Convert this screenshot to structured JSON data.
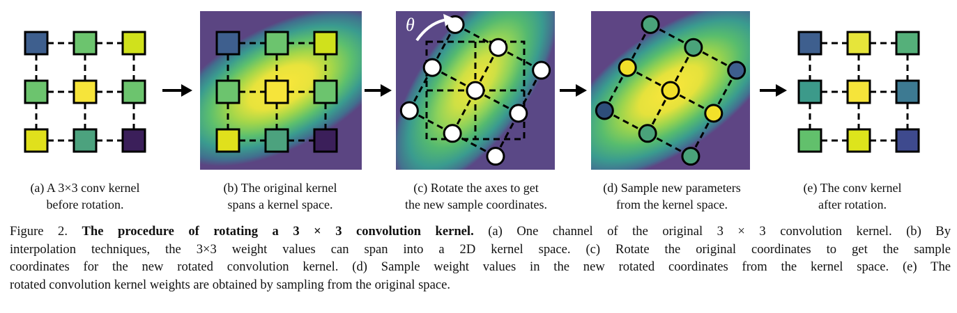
{
  "panels": [
    {
      "id": "a",
      "theta_label": "",
      "cells": [
        "#3e5f8e",
        "#6cc46e",
        "#d0e11c",
        "#6cc46e",
        "#f6e43a",
        "#6cc46e",
        "#e0e01c",
        "#4ca27e",
        "#3b1f5a"
      ],
      "caption": [
        "(a) A 3×3 conv kernel",
        "before rotation."
      ]
    },
    {
      "id": "b",
      "cells": [
        "#3e5f8e",
        "#6cc46e",
        "#d0e11c",
        "#6cc46e",
        "#f6e43a",
        "#6cc46e",
        "#e0e01c",
        "#4ca27e",
        "#3b1f5a"
      ],
      "caption": [
        "(b) The original kernel",
        "spans a kernel space."
      ]
    },
    {
      "id": "c",
      "theta_label": "θ",
      "caption": [
        "(c) Rotate the axes to get",
        "the new sample coordinates."
      ]
    },
    {
      "id": "d",
      "points": [
        "#2e4e7a",
        "#f2e12a",
        "#4aa37a",
        "#4aa37a",
        "#f2e12a",
        "#4aa37a",
        "#4aa37a",
        "#f2e12a",
        "#3e5f8e"
      ],
      "caption": [
        "(d) Sample new parameters",
        "from the kernel space."
      ]
    },
    {
      "id": "e",
      "cells": [
        "#3e5f8e",
        "#e6e53a",
        "#55b07a",
        "#3c9a8a",
        "#f6e43a",
        "#3d7a92",
        "#62c06c",
        "#dde41c",
        "#3e4a8e"
      ],
      "caption": [
        "(e) The conv kernel",
        "after rotation."
      ]
    }
  ],
  "colors": {
    "viridis_dark": "#46307a",
    "viridis_teal": "#3a9b8f",
    "viridis_green": "#6cc46e",
    "viridis_yellow": "#fde725"
  },
  "caption": {
    "lines": [
      [
        "Figure 2. ",
        "The procedure of rotating a 3 × 3 convolution kernel.",
        " (a) One channel of the original 3 × 3 convolution kernel. (b) By"
      ],
      [
        "interpolation techniques, the 3×3 weight values can span into a 2D kernel space. (c) Rotate the original coordinates to get the sample"
      ],
      [
        "coordinates for the new rotated convolution kernel. (d) Sample weight values in the new rotated coordinates from the kernel space. (e) The"
      ],
      [
        "rotated convolution kernel weights are obtained by sampling from the original space."
      ]
    ]
  }
}
